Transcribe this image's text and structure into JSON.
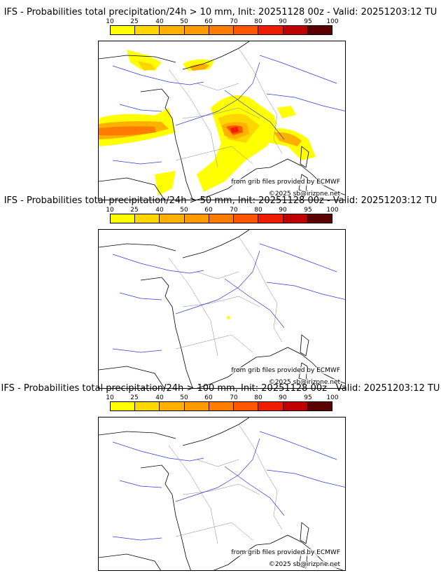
{
  "colorbar": {
    "ticks": [
      "10",
      "25",
      "40",
      "50",
      "60",
      "70",
      "80",
      "90",
      "95",
      "100"
    ],
    "colors": [
      "#ffff00",
      "#ffd700",
      "#ffb000",
      "#ff9a00",
      "#ff7c00",
      "#ff5500",
      "#ee1c00",
      "#c00000",
      "#8c0000",
      "#5a0000"
    ]
  },
  "panels": [
    {
      "title": "IFS - Probabilities total precipitation/24h > 10 mm, Init: 20251128 00z - Valid: 20251203:12 TU",
      "threshold": "10 mm",
      "source_credit": "from grib files provided by ECMWF",
      "copyright": "©2025 sb@irizpne.net"
    },
    {
      "title": "IFS - Probabilities total precipitation/24h > 50 mm, Init: 20251128 00z - Valid: 20251203:12 TU",
      "threshold": "50 mm",
      "source_credit": "from grib files provided by ECMWF",
      "copyright": "©2025 sb@irizpne.net"
    },
    {
      "title": "IFS - Probabilities total precipitation/24h > 100 mm, Init: 20251128 00z - Valid: 20251203:12 TU",
      "threshold": "100 mm",
      "source_credit": "from grib files provided by ECMWF",
      "copyright": "©2025 sb@irizpne.net"
    }
  ]
}
